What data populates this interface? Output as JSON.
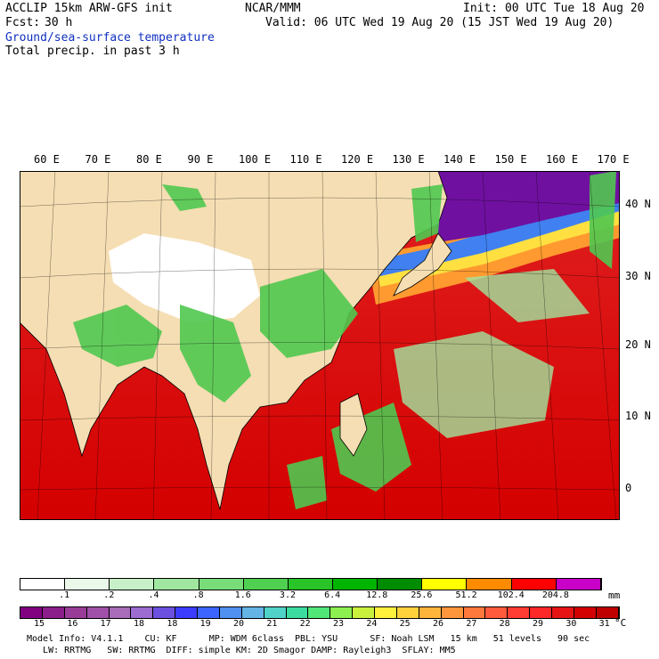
{
  "header": {
    "model": "ACCLIP 15km ARW-GFS init",
    "org": "NCAR/MMM",
    "init": "Init: 00 UTC Tue 18 Aug 20",
    "fcst_label": "Fcst:",
    "fcst_value": "30 h",
    "valid": "Valid: 06 UTC Wed 19 Aug 20 (15 JST Wed 19 Aug 20)",
    "field1": "Ground/sea-surface temperature",
    "field2": "Total precip. in past 3 h"
  },
  "map": {
    "lon_labels": [
      "60 E",
      "70 E",
      "80 E",
      "90 E",
      "100 E",
      "110 E",
      "120 E",
      "130 E",
      "140 E",
      "150 E",
      "160 E",
      "170 E"
    ],
    "lat_labels": [
      "40 N",
      "30 N",
      "20 N",
      "10 N",
      "0"
    ]
  },
  "precip_legend": {
    "unit": "mm",
    "ticks": [
      ".1",
      ".2",
      ".4",
      ".8",
      "1.6",
      "3.2",
      "6.4",
      "12.8",
      "25.6",
      "51.2",
      "102.4",
      "204.8"
    ],
    "colors": [
      "#ffffff",
      "#eaf8ea",
      "#c8f0c8",
      "#a0e6a0",
      "#78dc78",
      "#50d050",
      "#28c428",
      "#00b400",
      "#008c00",
      "#ffff00",
      "#ff8c00",
      "#ff0000",
      "#c800c8"
    ]
  },
  "temp_legend": {
    "unit": "°C",
    "ticks": [
      "15",
      "16",
      "17",
      "18",
      "18",
      "19",
      "20",
      "21",
      "22",
      "23",
      "24",
      "25",
      "26",
      "27",
      "28",
      "29",
      "30",
      "31"
    ],
    "colors": [
      "#800080",
      "#8c1e8c",
      "#983c98",
      "#a050a8",
      "#a86cb8",
      "#9c6cd0",
      "#6c50e0",
      "#3c3cff",
      "#3c64ff",
      "#5090f0",
      "#64b4e6",
      "#50d2c8",
      "#3cdca0",
      "#50e678",
      "#8cf050",
      "#c8f03c",
      "#fff03c",
      "#ffd23c",
      "#ffb43c",
      "#ff963c",
      "#ff783c",
      "#ff5a3c",
      "#ff3c32",
      "#ff2828",
      "#e61414",
      "#d20000",
      "#be0000"
    ]
  },
  "footer": {
    "line1": "Model Info: V4.1.1    CU: KF      MP: WDM 6class  PBL: YSU      SF: Noah LSM   15 km   51 levels   90 sec",
    "line2": "   LW: RRTMG   SW: RRTMG  DIFF: simple KM: 2D Smagor DAMP: Rayleigh3  SFLAY: MM5"
  }
}
